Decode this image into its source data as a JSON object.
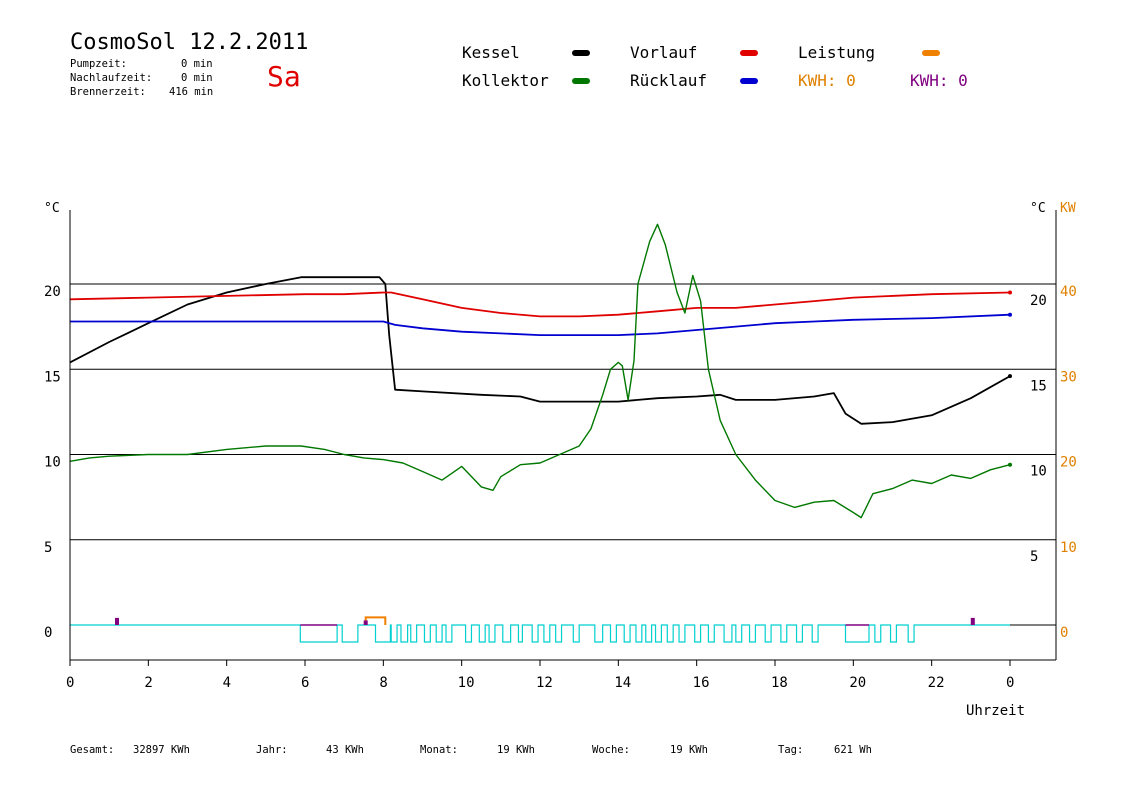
{
  "header": {
    "title": "CosmoSol 12.2.2011",
    "day": "Sa",
    "pumpzeit_label": "Pumpzeit:",
    "pumpzeit_value": "0 min",
    "nachlaufzeit_label": "Nachlaufzeit:",
    "nachlaufzeit_value": "0 min",
    "brennerzeit_label": "Brennerzeit:",
    "brennerzeit_value": "416 min"
  },
  "legend": {
    "kessel": "Kessel",
    "kollektor": "Kollektor",
    "vorlauf": "Vorlauf",
    "ruecklauf": "Rücklauf",
    "leistung": "Leistung",
    "kwh_orange": "KWH: 0",
    "kwh_purple": "KWH: 0"
  },
  "colors": {
    "kessel": "#000000",
    "kollektor": "#007800",
    "vorlauf": "#e00000",
    "ruecklauf": "#0000d0",
    "leistung": "#f08000",
    "purple": "#800080",
    "cyan": "#00d0d0",
    "axis_kw": "#e08000"
  },
  "footer": {
    "gesamt_label": "Gesamt:",
    "gesamt_value": "32897 KWh",
    "jahr_label": "Jahr:",
    "jahr_value": "43 KWh",
    "monat_label": "Monat:",
    "monat_value": "19 KWh",
    "woche_label": "Woche:",
    "woche_value": "19 KWh",
    "tag_label": "Tag:",
    "tag_value": "621 Wh"
  },
  "chart_data": {
    "type": "line",
    "xlabel": "Uhrzeit",
    "ylabel_left": "°C",
    "ylabel_right": "°C",
    "ylabel_right2": "KW",
    "xlim": [
      0,
      24
    ],
    "ylim": [
      -1.5,
      24.5
    ],
    "grid": "horizontal",
    "x_ticks": [
      "0",
      "2",
      "4",
      "6",
      "8",
      "10",
      "12",
      "14",
      "16",
      "18",
      "20",
      "22",
      "0"
    ],
    "y_ticks_left": [
      "20",
      "15",
      "10",
      "5",
      "0"
    ],
    "y_ticks_left_values": [
      20,
      15,
      10,
      5,
      0
    ],
    "y_ticks_right": [
      "20",
      "15",
      "10",
      "5"
    ],
    "y_ticks_right_values": [
      20,
      15,
      10,
      5
    ],
    "y_ticks_kw": [
      "40",
      "30",
      "20",
      "10",
      "0"
    ],
    "y_ticks_kw_values": [
      20,
      15,
      10,
      5,
      0
    ],
    "gridlines": [
      20,
      15,
      10,
      5
    ],
    "series": [
      {
        "name": "Kessel",
        "x": [
          0,
          1,
          2,
          3,
          4,
          5,
          5.9,
          7.9,
          8.05,
          8.15,
          8.3,
          9,
          10.5,
          11.5,
          12,
          13,
          14,
          15,
          16,
          16.6,
          17,
          18,
          19,
          19.5,
          19.8,
          20.2,
          21,
          22,
          23,
          24
        ],
        "y": [
          15.4,
          16.6,
          17.7,
          18.8,
          19.5,
          20.0,
          20.4,
          20.4,
          20.0,
          17.0,
          13.8,
          13.7,
          13.5,
          13.4,
          13.1,
          13.1,
          13.1,
          13.3,
          13.4,
          13.5,
          13.2,
          13.2,
          13.4,
          13.6,
          12.4,
          11.8,
          11.9,
          12.3,
          13.3,
          14.6
        ]
      },
      {
        "name": "Vorlauf",
        "x": [
          0,
          2,
          4,
          6,
          7,
          8,
          8.2,
          9,
          10,
          11,
          12,
          13,
          14,
          15,
          16,
          17,
          18,
          19,
          20,
          22,
          24
        ],
        "y": [
          19.1,
          19.2,
          19.3,
          19.4,
          19.4,
          19.5,
          19.5,
          19.1,
          18.6,
          18.3,
          18.1,
          18.1,
          18.2,
          18.4,
          18.6,
          18.6,
          18.8,
          19.0,
          19.2,
          19.4,
          19.5
        ]
      },
      {
        "name": "Rücklauf",
        "x": [
          0,
          2,
          4,
          6,
          8,
          8.3,
          9,
          10,
          11,
          12,
          13,
          14,
          15,
          16,
          17,
          18,
          19,
          20,
          22,
          24
        ],
        "y": [
          17.8,
          17.8,
          17.8,
          17.8,
          17.8,
          17.6,
          17.4,
          17.2,
          17.1,
          17.0,
          17.0,
          17.0,
          17.1,
          17.3,
          17.5,
          17.7,
          17.8,
          17.9,
          18.0,
          18.2
        ]
      },
      {
        "name": "Kollektor",
        "x": [
          0,
          0.5,
          1,
          2,
          3,
          4,
          5,
          5.9,
          6.5,
          7,
          7.5,
          8,
          8.5,
          9,
          9.5,
          10,
          10.5,
          10.8,
          11,
          11.5,
          12,
          12.5,
          13,
          13.3,
          13.6,
          13.8,
          14.0,
          14.1,
          14.25,
          14.4,
          14.5,
          14.8,
          15.0,
          15.2,
          15.5,
          15.7,
          15.9,
          16.1,
          16.3,
          16.6,
          17.0,
          17.5,
          18.0,
          18.5,
          19.0,
          19.5,
          20.0,
          20.2,
          20.5,
          21,
          21.5,
          22,
          22.5,
          23,
          23.5,
          24
        ],
        "y": [
          9.6,
          9.8,
          9.9,
          10.0,
          10.0,
          10.3,
          10.5,
          10.5,
          10.3,
          10.0,
          9.8,
          9.7,
          9.5,
          9.0,
          8.5,
          9.3,
          8.1,
          7.9,
          8.7,
          9.4,
          9.5,
          10.0,
          10.5,
          11.5,
          13.5,
          15.0,
          15.4,
          15.2,
          13.2,
          15.5,
          20.0,
          22.5,
          23.5,
          22.3,
          19.5,
          18.3,
          20.5,
          19.0,
          15.0,
          12.0,
          10.0,
          8.5,
          7.3,
          6.9,
          7.2,
          7.3,
          6.6,
          6.3,
          7.7,
          8.0,
          8.5,
          8.3,
          8.8,
          8.6,
          9.1,
          9.4
        ]
      }
    ],
    "leistung_segments": [
      {
        "x": [
          7.55,
          8.05
        ],
        "y": 0.45
      }
    ],
    "cyan_pulses": [
      [
        5.88,
        6.82
      ],
      [
        6.95,
        7.35
      ],
      [
        7.8,
        8.18
      ],
      [
        8.2,
        8.35
      ],
      [
        8.45,
        8.62
      ],
      [
        8.7,
        8.85
      ],
      [
        9.05,
        9.2
      ],
      [
        9.35,
        9.5
      ],
      [
        9.6,
        9.75
      ],
      [
        10.1,
        10.25
      ],
      [
        10.45,
        10.6
      ],
      [
        10.7,
        10.85
      ],
      [
        11.05,
        11.25
      ],
      [
        11.45,
        11.55
      ],
      [
        11.8,
        11.95
      ],
      [
        12.1,
        12.25
      ],
      [
        12.4,
        12.55
      ],
      [
        12.85,
        13.0
      ],
      [
        13.4,
        13.6
      ],
      [
        13.8,
        13.95
      ],
      [
        14.15,
        14.3
      ],
      [
        14.45,
        14.6
      ],
      [
        14.7,
        14.85
      ],
      [
        14.95,
        15.1
      ],
      [
        15.25,
        15.4
      ],
      [
        15.55,
        15.7
      ],
      [
        15.95,
        16.1
      ],
      [
        16.3,
        16.45
      ],
      [
        16.7,
        16.9
      ],
      [
        17.0,
        17.15
      ],
      [
        17.35,
        17.5
      ],
      [
        17.75,
        17.9
      ],
      [
        18.15,
        18.3
      ],
      [
        18.55,
        18.7
      ],
      [
        18.95,
        19.1
      ],
      [
        19.8,
        20.4
      ],
      [
        20.55,
        20.7
      ],
      [
        20.95,
        21.1
      ],
      [
        21.4,
        21.55
      ]
    ],
    "purple_marks": [
      {
        "x": 1.2,
        "y": 0.3
      },
      {
        "x": 7.55,
        "y": 0.15
      },
      {
        "x": 23.05,
        "y": 0.3
      }
    ]
  }
}
